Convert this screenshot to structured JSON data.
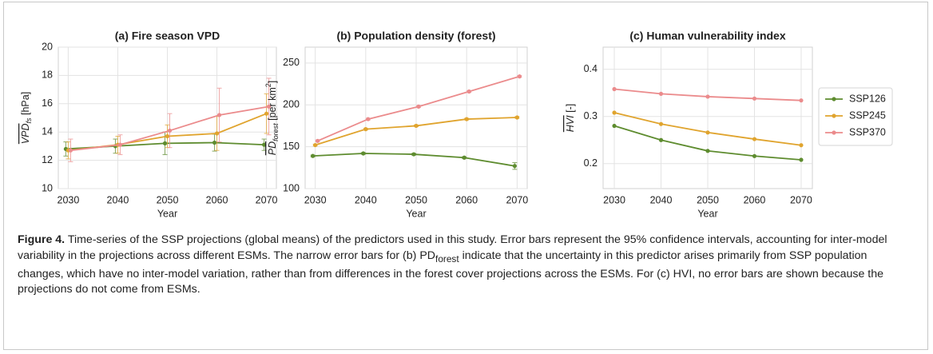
{
  "chart_data": [
    {
      "type": "line",
      "title": "(a) Fire season VPD",
      "ylabel": {
        "main": "VPD",
        "sub": "fs",
        "unit": " [hPa]"
      },
      "xlabel": "Year",
      "x": [
        2030,
        2040,
        2050,
        2060,
        2070
      ],
      "xlim": [
        2028,
        2072
      ],
      "xticks": [
        2030,
        2040,
        2050,
        2060,
        2070
      ],
      "ylim": [
        10,
        20
      ],
      "yticks": [
        10,
        12,
        14,
        16,
        18,
        20
      ],
      "grid": true,
      "series": [
        {
          "color": "#5e8c2f",
          "values": [
            12.8,
            13.0,
            13.2,
            13.25,
            13.1
          ],
          "errors": [
            0.5,
            0.5,
            0.8,
            0.6,
            0.4
          ]
        },
        {
          "color": "#e0a42e",
          "values": [
            12.7,
            13.1,
            13.7,
            13.9,
            15.3
          ],
          "errors": [
            0.6,
            0.6,
            0.8,
            1.2,
            1.4
          ]
        },
        {
          "color": "#eb8b8c",
          "values": [
            12.7,
            13.1,
            14.1,
            15.2,
            15.8
          ],
          "errors": [
            0.8,
            0.7,
            1.2,
            1.9,
            2.0
          ]
        }
      ]
    },
    {
      "type": "line",
      "title": "(b) Population density (forest)",
      "ylabel": {
        "main": "PD",
        "sub": "forest",
        "unit": " [per km",
        "sup": "2",
        "end": "]"
      },
      "xlabel": "Year",
      "x": [
        2030,
        2040,
        2050,
        2060,
        2070
      ],
      "xlim": [
        2028,
        2072
      ],
      "xticks": [
        2030,
        2040,
        2050,
        2060,
        2070
      ],
      "ylim": [
        100,
        269
      ],
      "yticks": [
        100,
        150,
        200,
        250
      ],
      "grid": true,
      "series": [
        {
          "color": "#5e8c2f",
          "values": [
            139,
            142,
            141,
            137,
            127
          ],
          "errors": [
            1,
            1,
            1,
            1,
            4
          ]
        },
        {
          "color": "#e0a42e",
          "values": [
            152,
            171,
            175,
            183,
            185
          ],
          "errors": [
            1,
            1,
            1,
            1,
            1
          ]
        },
        {
          "color": "#eb8b8c",
          "values": [
            157,
            183,
            198,
            216,
            234
          ],
          "errors": [
            1,
            1,
            1,
            1,
            1
          ]
        }
      ]
    },
    {
      "type": "line",
      "title": "(c) Human vulnerability index",
      "ylabel": {
        "main": "HVI",
        "unit": " [-]"
      },
      "xlabel": "Year",
      "x": [
        2030,
        2040,
        2050,
        2060,
        2070
      ],
      "xlim": [
        2027.6,
        2072.4
      ],
      "xticks": [
        2030,
        2040,
        2050,
        2060,
        2070
      ],
      "ylim": [
        0.147,
        0.447
      ],
      "yticks": [
        0.2,
        0.3,
        0.4
      ],
      "grid": true,
      "legend": "right",
      "series": [
        {
          "name": "SSP126",
          "color": "#5e8c2f",
          "values": [
            0.28,
            0.25,
            0.227,
            0.216,
            0.208
          ]
        },
        {
          "name": "SSP245",
          "color": "#e0a42e",
          "values": [
            0.308,
            0.284,
            0.266,
            0.252,
            0.239
          ]
        },
        {
          "name": "SSP370",
          "color": "#eb8b8c",
          "values": [
            0.358,
            0.348,
            0.342,
            0.338,
            0.334
          ]
        }
      ]
    }
  ],
  "caption": {
    "label": "Figure 4.",
    "text1": " Time-series of the SSP projections (global means) of the predictors used in this study. Error bars represent the 95% confidence intervals, accounting for inter-model variability in the projections across different ESMs. The narrow error bars for (b) PD",
    "sub": "forest",
    "text2": " indicate that the uncertainty in this predictor arises primarily from SSP population changes, which have no inter-model variation, rather than from differences in the forest cover projections across the ESMs. For (c) HVI, no error bars are shown because the projections do not come from ESMs."
  }
}
